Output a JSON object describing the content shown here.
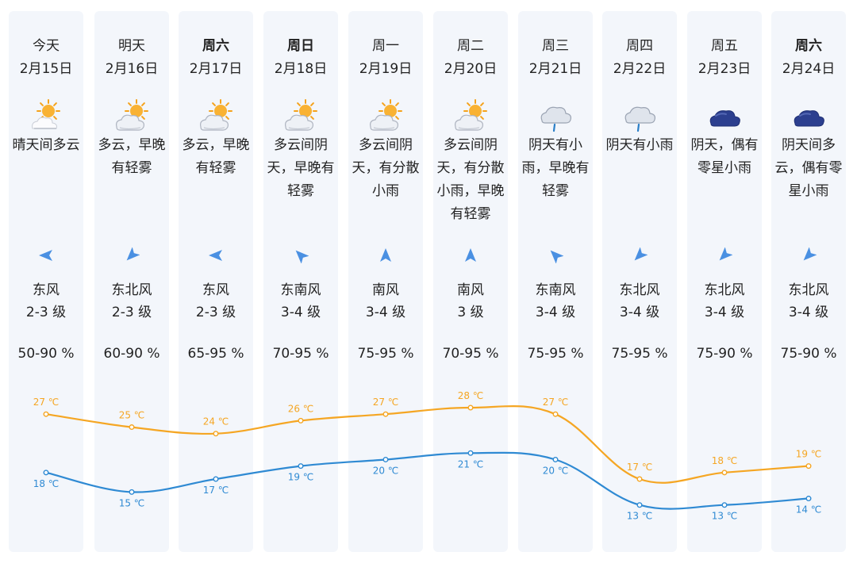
{
  "days": [
    {
      "day": "今天",
      "bold": false,
      "date": "2月15日",
      "icon": "sun-cloud-icon",
      "desc": [
        "晴天间多云"
      ],
      "wind_dir": "东风",
      "wind_level": "2-3 级",
      "wind_arrow_deg": 180,
      "humidity": "50-90 %"
    },
    {
      "day": "明天",
      "bold": false,
      "date": "2月16日",
      "icon": "partly-cloudy-icon",
      "desc": [
        "多云，早晚",
        "有轻雾"
      ],
      "wind_dir": "东北风",
      "wind_level": "2-3 级",
      "wind_arrow_deg": 135,
      "humidity": "60-90 %"
    },
    {
      "day": "周六",
      "bold": true,
      "date": "2月17日",
      "icon": "partly-cloudy-icon",
      "desc": [
        "多云，早晚",
        "有轻雾"
      ],
      "wind_dir": "东风",
      "wind_level": "2-3 级",
      "wind_arrow_deg": 180,
      "humidity": "65-95 %"
    },
    {
      "day": "周日",
      "bold": true,
      "date": "2月18日",
      "icon": "partly-cloudy-icon",
      "desc": [
        "多云间阴",
        "天，早晚有",
        "轻雾"
      ],
      "wind_dir": "东南风",
      "wind_level": "3-4 级",
      "wind_arrow_deg": 225,
      "humidity": "70-95 %"
    },
    {
      "day": "周一",
      "bold": false,
      "date": "2月19日",
      "icon": "partly-cloudy-icon",
      "desc": [
        "多云间阴",
        "天，有分散",
        "小雨"
      ],
      "wind_dir": "南风",
      "wind_level": "3-4 级",
      "wind_arrow_deg": 270,
      "humidity": "75-95 %"
    },
    {
      "day": "周二",
      "bold": false,
      "date": "2月20日",
      "icon": "partly-cloudy-icon",
      "desc": [
        "多云间阴",
        "天，有分散",
        "小雨，早晚",
        "有轻雾"
      ],
      "wind_dir": "南风",
      "wind_level": "3 级",
      "wind_arrow_deg": 270,
      "humidity": "70-95 %"
    },
    {
      "day": "周三",
      "bold": false,
      "date": "2月21日",
      "icon": "rain-cloud-icon",
      "desc": [
        "阴天有小",
        "雨，早晚有",
        "轻雾"
      ],
      "wind_dir": "东南风",
      "wind_level": "3-4 级",
      "wind_arrow_deg": 225,
      "humidity": "75-95 %"
    },
    {
      "day": "周四",
      "bold": false,
      "date": "2月22日",
      "icon": "rain-cloud-icon",
      "desc": [
        "阴天有小雨"
      ],
      "wind_dir": "东北风",
      "wind_level": "3-4 级",
      "wind_arrow_deg": 135,
      "humidity": "75-95 %"
    },
    {
      "day": "周五",
      "bold": false,
      "date": "2月23日",
      "icon": "dark-cloud-icon",
      "desc": [
        "阴天，偶有",
        "零星小雨"
      ],
      "wind_dir": "东北风",
      "wind_level": "3-4 级",
      "wind_arrow_deg": 135,
      "humidity": "75-90 %"
    },
    {
      "day": "周六",
      "bold": true,
      "date": "2月24日",
      "icon": "dark-cloud-icon",
      "desc": [
        "阴天间多",
        "云，偶有零",
        "星小雨"
      ],
      "wind_dir": "东北风",
      "wind_level": "3-4 级",
      "wind_arrow_deg": 135,
      "humidity": "75-90 %"
    }
  ],
  "chart_data": {
    "type": "line",
    "categories": [
      "2月15日",
      "2月16日",
      "2月17日",
      "2月18日",
      "2月19日",
      "2月20日",
      "2月21日",
      "2月22日",
      "2月23日",
      "2月24日"
    ],
    "unit": "℃",
    "series": [
      {
        "values": [
          27,
          25,
          24,
          26,
          27,
          28,
          27,
          17,
          18,
          19
        ],
        "color": "#f5a623"
      },
      {
        "values": [
          18,
          15,
          17,
          19,
          20,
          21,
          20,
          13,
          13,
          14
        ],
        "color": "#2f8ad3"
      }
    ]
  },
  "colors": {
    "panel": "#f3f6fb",
    "arrow": "#4a90e2",
    "high": "#f5a623",
    "low": "#2f8ad3"
  }
}
